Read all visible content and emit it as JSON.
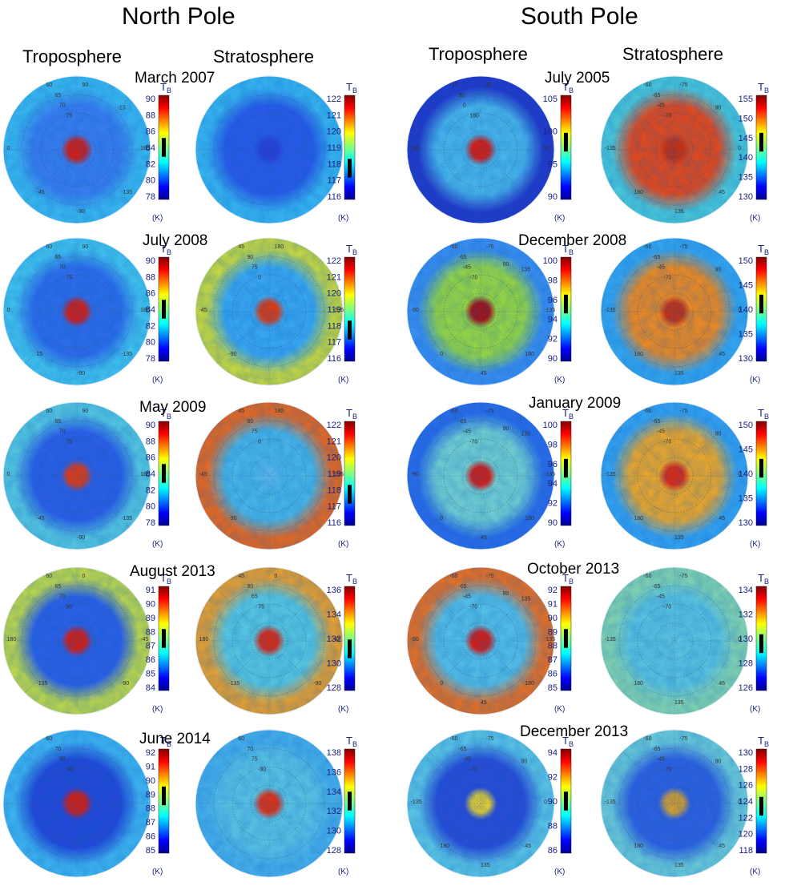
{
  "figure": {
    "north": {
      "title": "North Pole",
      "trop_label": "Troposphere",
      "strat_label": "Stratosphere",
      "rows": [
        {
          "date": "March 2007",
          "trop_ticks": [
            "90",
            "88",
            "86",
            "84",
            "82",
            "80",
            "78"
          ],
          "trop_level": 0.5,
          "strat_ticks": [
            "122",
            "121",
            "120",
            "119",
            "118",
            "117",
            "116"
          ],
          "strat_level": 0.3,
          "trop_center": "#d81c12",
          "trop_mid": "#3a7df0",
          "trop_edge": "#3bb8f0",
          "strat_center": "#2a3fd8",
          "strat_mid": "#2a5ae8",
          "strat_edge": "#38b4f0",
          "trop_angles": [
            "60",
            "65",
            "70",
            "75",
            "90",
            "0",
            "180",
            "-45",
            "-135",
            "-90",
            "-15"
          ],
          "strat_angles": []
        },
        {
          "date": "July 2008",
          "trop_ticks": [
            "90",
            "88",
            "86",
            "84",
            "82",
            "80",
            "78"
          ],
          "trop_level": 0.5,
          "strat_ticks": [
            "122",
            "121",
            "120",
            "119",
            "118",
            "117",
            "116"
          ],
          "strat_level": 0.3,
          "trop_center": "#d81c12",
          "trop_mid": "#2f6cea",
          "trop_edge": "#43c3ee",
          "strat_center": "#e23a10",
          "strat_mid": "#3aa8f2",
          "strat_edge": "#c8d840",
          "trop_angles": [
            "60",
            "65",
            "70",
            "75",
            "90",
            "0",
            "180",
            "15",
            "-135",
            "-90"
          ],
          "strat_angles": [
            "45",
            "90",
            "75",
            "0",
            "180",
            "-45",
            "-135",
            "-90"
          ]
        },
        {
          "date": "May 2009",
          "trop_ticks": [
            "90",
            "88",
            "86",
            "84",
            "82",
            "80",
            "78"
          ],
          "trop_level": 0.5,
          "strat_ticks": [
            "122",
            "121",
            "120",
            "119",
            "118",
            "117",
            "116"
          ],
          "strat_level": 0.3,
          "trop_center": "#e53a12",
          "trop_mid": "#2d5ee6",
          "trop_edge": "#56c6e0",
          "strat_center": "#5cbcee",
          "strat_mid": "#4ab8e8",
          "strat_edge": "#e86820",
          "trop_angles": [
            "60",
            "65",
            "70",
            "75",
            "90",
            "0",
            "180",
            "-45",
            "-135",
            "-90"
          ],
          "strat_angles": [
            "45",
            "90",
            "75",
            "0",
            "180",
            "-45",
            "-135",
            "-90"
          ]
        },
        {
          "date": "August 2013",
          "trop_ticks": [
            "91",
            "90",
            "89",
            "88",
            "87",
            "86",
            "85",
            "84"
          ],
          "trop_level": 0.5,
          "strat_ticks": [
            "136",
            "134",
            "132",
            "130",
            "128"
          ],
          "strat_level": 0.4,
          "trop_center": "#d81c12",
          "trop_mid": "#2d60e6",
          "trop_edge": "#c0d84a",
          "strat_center": "#e02a10",
          "strat_mid": "#5ac8e0",
          "strat_edge": "#e8a030",
          "trop_angles": [
            "60",
            "65",
            "70",
            "90",
            "0",
            "180",
            "-45",
            "-135",
            "-90"
          ],
          "strat_angles": [
            "45",
            "90",
            "65",
            "75",
            "0",
            "180",
            "-45",
            "-135",
            "-90"
          ]
        },
        {
          "date": "June 2014",
          "trop_ticks": [
            "92",
            "91",
            "90",
            "89",
            "88",
            "87",
            "86",
            "85"
          ],
          "trop_level": 0.55,
          "strat_ticks": [
            "138",
            "136",
            "134",
            "132",
            "130",
            "128"
          ],
          "strat_level": 0.5,
          "trop_center": "#d81c12",
          "trop_mid": "#2448d8",
          "trop_edge": "#40b4f0",
          "strat_center": "#e8300e",
          "strat_mid": "#5cc4e4",
          "strat_edge": "#48b0ea",
          "trop_angles": [
            "60",
            "70",
            "90",
            "-90"
          ],
          "strat_angles": [
            "60",
            "70",
            "75",
            "-90"
          ]
        }
      ]
    },
    "south": {
      "title": "South Pole",
      "trop_label": "Troposphere",
      "strat_label": "Stratosphere",
      "rows": [
        {
          "date": "July 2005",
          "trop_ticks": [
            "105",
            "100",
            "95",
            "90"
          ],
          "trop_level": 0.55,
          "strat_ticks": [
            "155",
            "150",
            "145",
            "140",
            "135",
            "130"
          ],
          "strat_level": 0.55,
          "trop_center": "#d81c12",
          "trop_mid": "#4ab6ea",
          "trop_edge": "#2438c8",
          "strat_center": "#c83010",
          "strat_mid": "#e84818",
          "strat_edge": "#4cc8d8",
          "trop_angles": [
            "-75",
            "90",
            "0",
            "180",
            "45",
            "135",
            "90"
          ],
          "strat_angles": [
            "-60",
            "-65",
            "-45",
            "-70",
            "-75",
            "-135",
            "0",
            "180",
            "45",
            "135",
            "90"
          ]
        },
        {
          "date": "December 2008",
          "trop_ticks": [
            "100",
            "98",
            "96",
            "94",
            "92",
            "90"
          ],
          "trop_level": 0.55,
          "strat_ticks": [
            "150",
            "145",
            "140",
            "135",
            "130"
          ],
          "strat_level": 0.55,
          "trop_center": "#a81010",
          "trop_mid": "#9ad840",
          "trop_edge": "#3a8ef0",
          "strat_center": "#c83010",
          "strat_mid": "#f08a20",
          "strat_edge": "#36a6f0",
          "trop_angles": [
            "-60",
            "-65",
            "-45",
            "-70",
            "-75",
            "-90",
            "-135",
            "0",
            "180",
            "45",
            "135",
            "90"
          ],
          "strat_angles": [
            "-60",
            "-65",
            "-45",
            "-70",
            "-75",
            "-135",
            "0",
            "180",
            "45",
            "135",
            "90"
          ]
        },
        {
          "date": "January 2009",
          "trop_ticks": [
            "100",
            "98",
            "96",
            "94",
            "92",
            "90"
          ],
          "trop_level": 0.55,
          "strat_ticks": [
            "150",
            "145",
            "140",
            "135",
            "130"
          ],
          "strat_level": 0.55,
          "trop_center": "#d81c12",
          "trop_mid": "#74d0d0",
          "trop_edge": "#2c6ce8",
          "strat_center": "#e02a10",
          "strat_mid": "#f0a828",
          "strat_edge": "#36a2f0",
          "trop_angles": [
            "-60",
            "-65",
            "-45",
            "-70",
            "-75",
            "-90",
            "-135",
            "0",
            "180",
            "45",
            "135",
            "90"
          ],
          "strat_angles": [
            "-60",
            "-65",
            "-45",
            "-70",
            "-75",
            "-135",
            "0",
            "180",
            "45",
            "135",
            "90"
          ]
        },
        {
          "date": "October 2013",
          "trop_ticks": [
            "92",
            "91",
            "90",
            "89",
            "88",
            "87",
            "86",
            "85"
          ],
          "trop_level": 0.5,
          "strat_ticks": [
            "134",
            "132",
            "130",
            "128",
            "126"
          ],
          "strat_level": 0.45,
          "trop_center": "#d81c12",
          "trop_mid": "#56c0e6",
          "trop_edge": "#e87024",
          "strat_center": "#60c8e2",
          "strat_mid": "#5cc4e0",
          "strat_edge": "#84d4b0",
          "trop_angles": [
            "-60",
            "-65",
            "-45",
            "-70",
            "-75",
            "-90",
            "-135",
            "0",
            "180",
            "45",
            "135",
            "90"
          ],
          "strat_angles": [
            "-60",
            "-65",
            "-45",
            "-70",
            "-75",
            "-135",
            "0",
            "180",
            "45",
            "135"
          ]
        },
        {
          "date": "December 2013",
          "trop_ticks": [
            "94",
            "92",
            "90",
            "88",
            "86"
          ],
          "trop_level": 0.5,
          "strat_ticks": [
            "130",
            "128",
            "126",
            "124",
            "122",
            "120",
            "118"
          ],
          "strat_level": 0.45,
          "trop_center": "#e8d030",
          "trop_mid": "#2a4cd8",
          "trop_edge": "#5cc4e4",
          "strat_center": "#d8a030",
          "strat_mid": "#3060e0",
          "strat_edge": "#6ccad8",
          "trop_angles": [
            "-60",
            "-65",
            "-45",
            "-70",
            "-75",
            "-135",
            "0",
            "180",
            "45",
            "135",
            "90"
          ],
          "strat_angles": [
            "-60",
            "-65",
            "-45",
            "-70",
            "-75",
            "-135",
            "0",
            "180",
            "45",
            "135",
            "90"
          ]
        }
      ]
    },
    "tb_symbol": "T",
    "tb_subscript": "B",
    "unit_label": "(K)"
  }
}
